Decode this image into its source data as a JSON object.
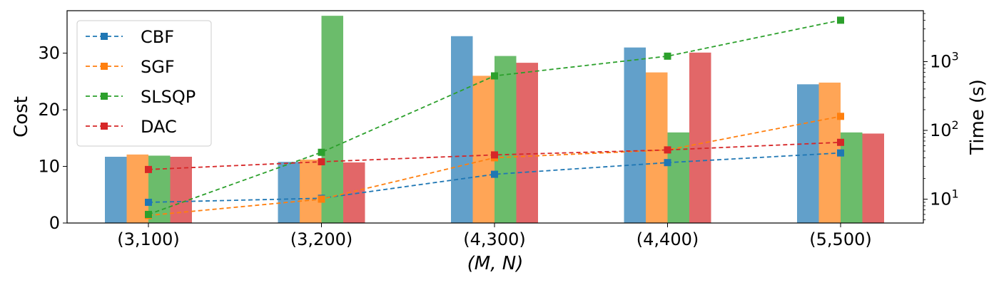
{
  "chart_data": {
    "type": "bar",
    "categories": [
      "(3,100)",
      "(3,200)",
      "(4,300)",
      "(4,400)",
      "(5,500)"
    ],
    "xlabel": "(M, N)",
    "ylabel_left": "Cost",
    "ylabel_right": "Time (s)",
    "ylim_left": [
      0,
      37.5
    ],
    "yticks_left": [
      0,
      10,
      20,
      30
    ],
    "ylim_right_log": [
      4.5,
      5500
    ],
    "yticks_right": [
      {
        "value": 10,
        "base": "10",
        "exp": "1"
      },
      {
        "value": 100,
        "base": "10",
        "exp": "2"
      },
      {
        "value": 1000,
        "base": "10",
        "exp": "3"
      }
    ],
    "bars": [
      {
        "name": "CBF",
        "color": "#1f77b4",
        "values": [
          11.7,
          10.8,
          33.0,
          31.0,
          24.5
        ]
      },
      {
        "name": "SGF",
        "color": "#ff7f0e",
        "values": [
          12.1,
          11.2,
          26.0,
          26.6,
          24.8
        ]
      },
      {
        "name": "SLSQP",
        "color": "#2ca02c",
        "values": [
          11.9,
          36.6,
          29.5,
          16.0,
          16.0
        ]
      },
      {
        "name": "DAC",
        "color": "#d62728",
        "values": [
          11.7,
          10.7,
          28.3,
          30.1,
          15.8
        ]
      }
    ],
    "lines": [
      {
        "name": "CBF",
        "color": "#1f77b4",
        "values": [
          9.0,
          10.3,
          23.0,
          34.0,
          47.0
        ]
      },
      {
        "name": "SGF",
        "color": "#ff7f0e",
        "values": [
          5.8,
          10.0,
          40.0,
          52.0,
          160.0
        ]
      },
      {
        "name": "SLSQP",
        "color": "#2ca02c",
        "values": [
          6.0,
          48.0,
          620.0,
          1200.0,
          4000.0
        ]
      },
      {
        "name": "DAC",
        "color": "#d62728",
        "values": [
          27.0,
          35.0,
          44.0,
          52.0,
          67.0
        ]
      }
    ],
    "legend": {
      "position": "top-left",
      "entries": [
        "CBF",
        "SGF",
        "SLSQP",
        "DAC"
      ]
    },
    "grid": false
  }
}
